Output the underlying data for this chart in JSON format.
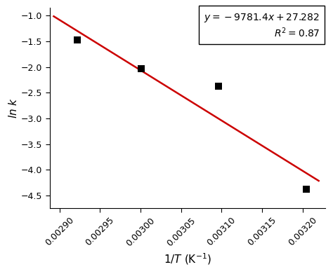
{
  "scatter_x": [
    0.002922,
    0.003001,
    0.003096,
    0.003205
  ],
  "scatter_y": [
    -1.47,
    -2.03,
    -2.38,
    -4.38
  ],
  "line_slope": -9781.4,
  "line_intercept": 27.282,
  "line_x_start": 0.002893,
  "line_x_end": 0.00322,
  "xlabel": "1/$T$ (K$^{-1}$)",
  "ylabel": "ln $k$",
  "xlim": [
    0.002888,
    0.003228
  ],
  "ylim": [
    -4.75,
    -0.85
  ],
  "xticks": [
    0.0029,
    0.00295,
    0.003,
    0.00305,
    0.0031,
    0.00315,
    0.0032
  ],
  "yticks": [
    -1.0,
    -1.5,
    -2.0,
    -2.5,
    -3.0,
    -3.5,
    -4.0,
    -4.5
  ],
  "equation_line1": "y = −9781.4x + 27.282",
  "equation_line2": "R² = 0.87",
  "line_color": "#cc0000",
  "scatter_color": "#000000",
  "background_color": "#ffffff",
  "tick_rotation": 45,
  "scatter_size": 50
}
